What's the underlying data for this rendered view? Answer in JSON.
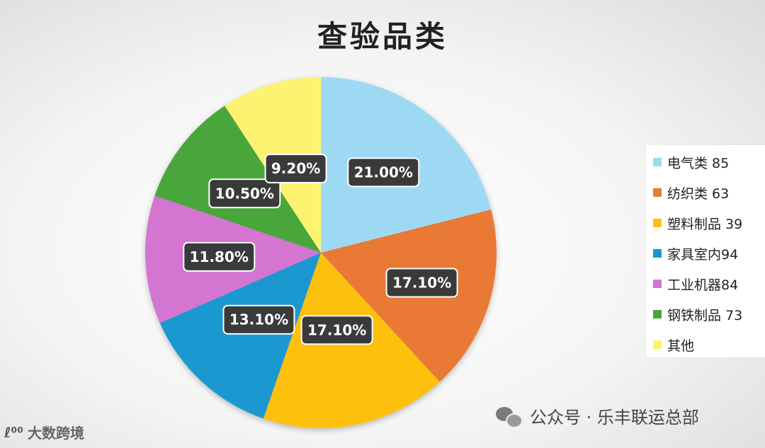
{
  "title": "查验品类",
  "colors": [
    "#9ed9f4",
    "#e97936",
    "#fdc011",
    "#1b98d0",
    "#d375d1",
    "#4aa63a",
    "#fdf36f"
  ],
  "chart_data": {
    "type": "pie",
    "title": "查验品类",
    "slices": [
      {
        "label": "电气类 85",
        "value": 21.0,
        "display": "21.00%"
      },
      {
        "label": "纺织类 63",
        "value": 17.1,
        "display": "17.10%"
      },
      {
        "label": "塑料制品 39",
        "value": 17.1,
        "display": "17.10%"
      },
      {
        "label": "家具室内94",
        "value": 13.1,
        "display": "13.10%"
      },
      {
        "label": "工业机器84",
        "value": 11.8,
        "display": "11.80%"
      },
      {
        "label": "钢铁制品 73",
        "value": 10.5,
        "display": "10.50%"
      },
      {
        "label": "其他",
        "value": 9.2,
        "display": "9.20%"
      }
    ],
    "legend_position": "right"
  },
  "footer": {
    "account": "公众号 · 乐丰联运总部",
    "brand": "大数跨境",
    "brand_logo": "ℓ⁰⁰"
  }
}
